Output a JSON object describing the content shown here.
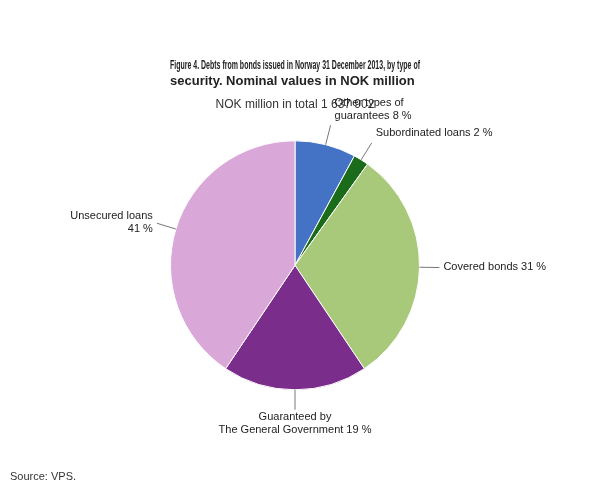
{
  "chart_data": {
    "type": "pie",
    "title": "Figure 4. Debts from bonds issued in Norway 31 December 2013, by type of\nsecurity. Nominal values in NOK million",
    "subtitle": "NOK million in total 1 637 902",
    "source": "Source: VPS.",
    "categories": [
      "Other types of\nguarantees 8 %",
      "Subordinated loans 2 %",
      "Covered bonds 31 %",
      "Guaranteed by\nThe General Government 19 %",
      "Unsecured loans\n41 %"
    ],
    "values": [
      8,
      2,
      31,
      19,
      41
    ],
    "colors": [
      "#4472c4",
      "#1a6b1a",
      "#a8c87a",
      "#7b2d8b",
      "#d9a8d9"
    ]
  }
}
